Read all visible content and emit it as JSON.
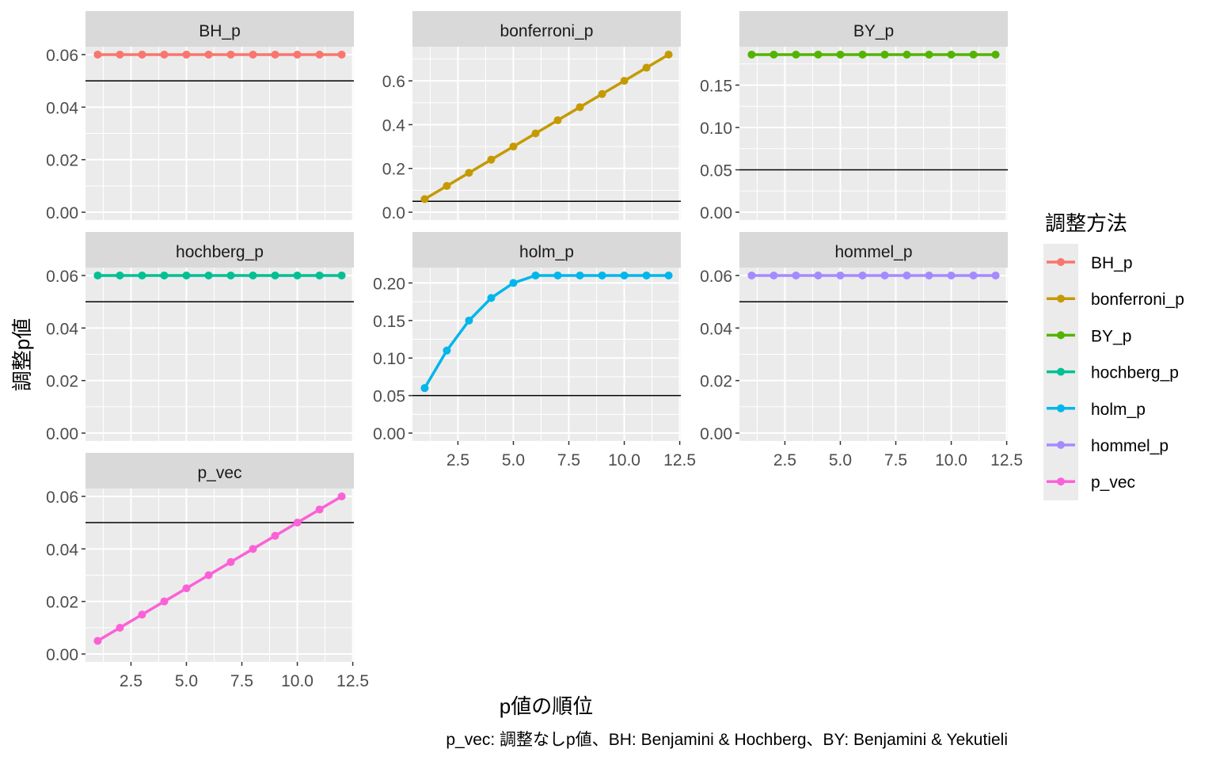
{
  "chart_data": {
    "type": "line",
    "facet": "wrap",
    "xlabel": "p値の順位",
    "ylabel": "調整p値",
    "caption": "p_vec: 調整なしp値、BH: Benjamini & Hochberg、BY: Benjamini & Yekutieli",
    "hline": 0.05,
    "x": [
      1,
      2,
      3,
      4,
      5,
      6,
      7,
      8,
      9,
      10,
      11,
      12
    ],
    "xlim": [
      1,
      12
    ],
    "x_ticks": [
      2.5,
      5.0,
      7.5,
      10.0,
      12.5
    ],
    "x_tick_labels": [
      "2.5",
      "5.0",
      "7.5",
      "10.0",
      "12.5"
    ],
    "legend": {
      "title": "調整方法",
      "position": "right"
    },
    "series": [
      {
        "name": "BH_p",
        "color": "#F8766D",
        "values": [
          0.06,
          0.06,
          0.06,
          0.06,
          0.06,
          0.06,
          0.06,
          0.06,
          0.06,
          0.06,
          0.06,
          0.06
        ],
        "ylim": [
          0,
          0.06
        ],
        "y_ticks": [
          0,
          0.02,
          0.04,
          0.06
        ],
        "y_tick_labels": [
          "0.00",
          "0.02",
          "0.04",
          "0.06"
        ],
        "show_x_axis": false
      },
      {
        "name": "bonferroni_p",
        "color": "#C49A00",
        "values": [
          0.06,
          0.12,
          0.18,
          0.24,
          0.3,
          0.36,
          0.42,
          0.48,
          0.54,
          0.6,
          0.66,
          0.72
        ],
        "ylim": [
          0,
          0.72
        ],
        "y_ticks": [
          0,
          0.2,
          0.4,
          0.6
        ],
        "y_tick_labels": [
          "0.0",
          "0.2",
          "0.4",
          "0.6"
        ],
        "show_x_axis": false
      },
      {
        "name": "BY_p",
        "color": "#53B400",
        "values": [
          0.186,
          0.186,
          0.186,
          0.186,
          0.186,
          0.186,
          0.186,
          0.186,
          0.186,
          0.186,
          0.186,
          0.186
        ],
        "ylim": [
          0,
          0.186
        ],
        "y_ticks": [
          0,
          0.05,
          0.1,
          0.15
        ],
        "y_tick_labels": [
          "0.00",
          "0.05",
          "0.10",
          "0.15"
        ],
        "show_x_axis": false
      },
      {
        "name": "hochberg_p",
        "color": "#00C094",
        "values": [
          0.06,
          0.06,
          0.06,
          0.06,
          0.06,
          0.06,
          0.06,
          0.06,
          0.06,
          0.06,
          0.06,
          0.06
        ],
        "ylim": [
          0,
          0.06
        ],
        "y_ticks": [
          0,
          0.02,
          0.04,
          0.06
        ],
        "y_tick_labels": [
          "0.00",
          "0.02",
          "0.04",
          "0.06"
        ],
        "show_x_axis": false
      },
      {
        "name": "holm_p",
        "color": "#00B6EB",
        "values": [
          0.06,
          0.11,
          0.15,
          0.18,
          0.2,
          0.21,
          0.21,
          0.21,
          0.21,
          0.21,
          0.21,
          0.21
        ],
        "ylim": [
          0,
          0.21
        ],
        "y_ticks": [
          0,
          0.05,
          0.1,
          0.15,
          0.2
        ],
        "y_tick_labels": [
          "0.00",
          "0.05",
          "0.10",
          "0.15",
          "0.20"
        ],
        "show_x_axis": true
      },
      {
        "name": "hommel_p",
        "color": "#A58AFF",
        "values": [
          0.06,
          0.06,
          0.06,
          0.06,
          0.06,
          0.06,
          0.06,
          0.06,
          0.06,
          0.06,
          0.06,
          0.06
        ],
        "ylim": [
          0,
          0.06
        ],
        "y_ticks": [
          0,
          0.02,
          0.04,
          0.06
        ],
        "y_tick_labels": [
          "0.00",
          "0.02",
          "0.04",
          "0.06"
        ],
        "show_x_axis": true
      },
      {
        "name": "p_vec",
        "color": "#FB61D7",
        "values": [
          0.005,
          0.01,
          0.015,
          0.02,
          0.025,
          0.03,
          0.035,
          0.04,
          0.045,
          0.05,
          0.055,
          0.06
        ],
        "ylim": [
          0,
          0.06
        ],
        "y_ticks": [
          0,
          0.02,
          0.04,
          0.06
        ],
        "y_tick_labels": [
          "0.00",
          "0.02",
          "0.04",
          "0.06"
        ],
        "show_x_axis": true
      }
    ]
  }
}
